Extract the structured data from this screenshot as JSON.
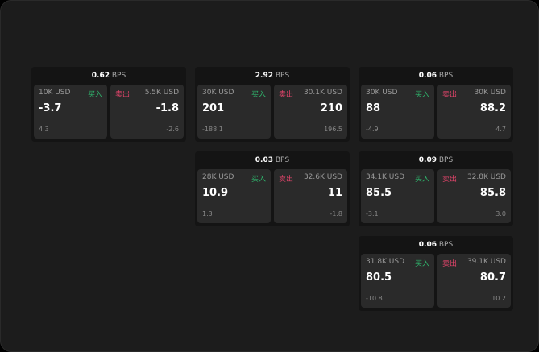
{
  "labels": {
    "buy": "买入",
    "sell": "卖出",
    "unit": "BPS"
  },
  "cards": [
    {
      "spread": "0.62",
      "buy_size": "10K USD",
      "buy_price": "-3.7",
      "buy_change": "4.3",
      "sell_size": "5.5K USD",
      "sell_price": "-1.8",
      "sell_change": "-2.6"
    },
    {
      "spread": "2.92",
      "buy_size": "30K USD",
      "buy_price": "201",
      "buy_change": "-188.1",
      "sell_size": "30.1K USD",
      "sell_price": "210",
      "sell_change": "196.5"
    },
    {
      "spread": "0.06",
      "buy_size": "30K USD",
      "buy_price": "88",
      "buy_change": "-4.9",
      "sell_size": "30K USD",
      "sell_price": "88.2",
      "sell_change": "4.7"
    },
    {
      "spread": "0.03",
      "buy_size": "28K USD",
      "buy_price": "10.9",
      "buy_change": "1.3",
      "sell_size": "32.6K USD",
      "sell_price": "11",
      "sell_change": "-1.8"
    },
    {
      "spread": "0.09",
      "buy_size": "34.1K USD",
      "buy_price": "85.5",
      "buy_change": "-3.1",
      "sell_size": "32.8K USD",
      "sell_price": "85.8",
      "sell_change": "3.0"
    },
    {
      "spread": "0.06",
      "buy_size": "31.8K USD",
      "buy_price": "80.5",
      "buy_change": "-10.8",
      "sell_size": "39.1K USD",
      "sell_price": "80.7",
      "sell_change": "10.2"
    }
  ],
  "colors": {
    "buy": "#2fb36b",
    "sell": "#e0446a"
  }
}
